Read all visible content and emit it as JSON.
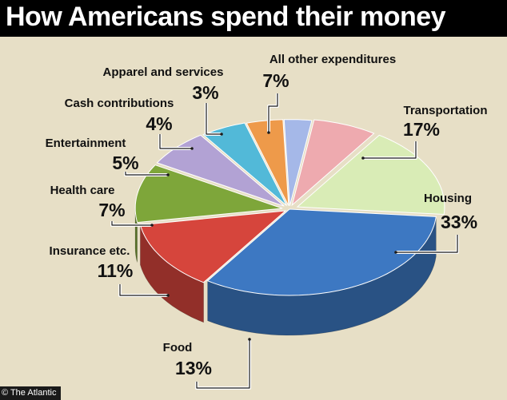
{
  "header": {
    "title": "How Americans spend their money"
  },
  "watermark": "© The Atlantic",
  "chart_data": {
    "type": "pie",
    "title": "How Americans spend their money",
    "categories": [
      "Housing",
      "Food",
      "Insurance etc.",
      "Health care",
      "Entertainment",
      "Cash contributions",
      "Apparel and services",
      "All other expenditures",
      "Transportation"
    ],
    "values": [
      33,
      13,
      11,
      7,
      5,
      4,
      3,
      7,
      17
    ],
    "value_labels": [
      "33%",
      "13%",
      "11%",
      "7%",
      "5%",
      "4%",
      "3%",
      "7%",
      "17%"
    ],
    "colors": [
      "#3d78c2",
      "#d6453c",
      "#7ea63a",
      "#b2a2d4",
      "#52b9d8",
      "#ee9a4a",
      "#a5b8e8",
      "#eeaaaf",
      "#d9ecb6"
    ],
    "legend": "none",
    "style": "3d exploded pie with leader-line labels"
  }
}
